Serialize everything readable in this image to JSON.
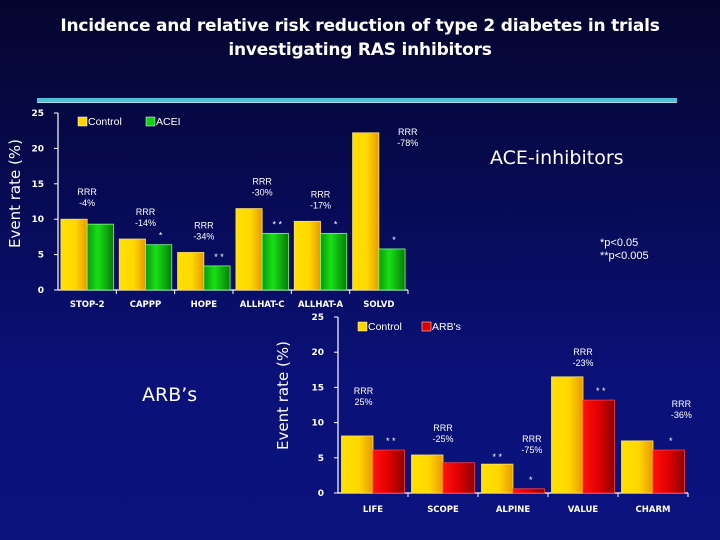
{
  "slide": {
    "title": "Incidence and relative risk reduction of type 2 diabetes in trials investigating RAS inhibitors",
    "ace_label": "ACE-inhibitors",
    "arb_label": "ARB’s",
    "p_notes": [
      "*p<0.05",
      "**p<0.005"
    ],
    "colors": {
      "background": "#070a52",
      "rule": "#4fc0d6",
      "control": "#ffd400",
      "acei": "#12d012",
      "arb": "#d80000"
    }
  },
  "chart_data": [
    {
      "type": "bar",
      "title": "ACE-inhibitors",
      "xlabel": "",
      "ylabel": "Event rate (%)",
      "ylim": [
        0,
        25
      ],
      "yticks": [
        0,
        5,
        10,
        15,
        20,
        25
      ],
      "grid": false,
      "legend": "top-left",
      "categories": [
        "STOP-2",
        "CAPPP",
        "HOPE",
        "ALLHAT-C",
        "ALLHAT-A",
        "SOLVD"
      ],
      "series": [
        {
          "name": "Control",
          "values": [
            10.0,
            7.2,
            5.3,
            11.5,
            9.7,
            22.2
          ]
        },
        {
          "name": "ACEI",
          "values": [
            9.3,
            6.4,
            3.4,
            8.0,
            8.0,
            5.8
          ]
        }
      ],
      "annotations": {
        "rrr": [
          "RRR\n-4%",
          "RRR\n-14%",
          "RRR\n-34%",
          "RRR\n-30%",
          "RRR\n-17%",
          "RRR\n-78%"
        ],
        "significance": [
          "",
          "*",
          "**",
          "**",
          "*",
          "*"
        ]
      }
    },
    {
      "type": "bar",
      "title": "ARB's",
      "xlabel": "",
      "ylabel": "Event rate (%)",
      "ylim": [
        0,
        25
      ],
      "yticks": [
        0,
        5,
        10,
        15,
        20,
        25
      ],
      "grid": false,
      "legend": "top-left",
      "categories": [
        "LIFE",
        "SCOPE",
        "ALPINE",
        "VALUE",
        "CHARM"
      ],
      "series": [
        {
          "name": "Control",
          "values": [
            8.1,
            5.4,
            4.1,
            16.5,
            7.4
          ]
        },
        {
          "name": "ARB's",
          "values": [
            6.1,
            4.3,
            0.6,
            13.2,
            6.1
          ]
        }
      ],
      "annotations": {
        "rrr": [
          "RRR\n25%",
          "RRR\n-25%",
          "RRR\n-75%",
          "RRR\n-23%",
          "RRR\n-36%"
        ],
        "significance": [
          "**",
          "",
          "*",
          "**",
          "*"
        ],
        "control_significance": [
          "",
          "",
          "**",
          "",
          ""
        ]
      }
    }
  ]
}
